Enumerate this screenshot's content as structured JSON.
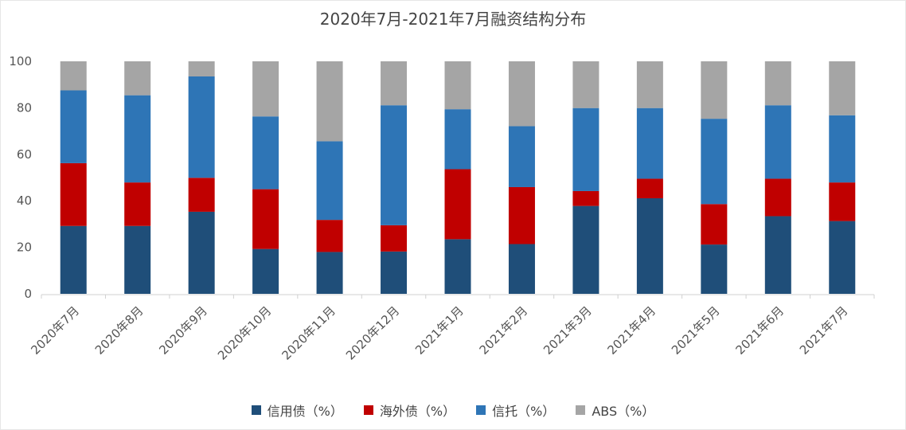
{
  "chart_data": {
    "type": "bar",
    "stacked": true,
    "title": "2020年7月-2021年7月融资结构分布",
    "xlabel": "",
    "ylabel": "",
    "ylim": [
      0,
      100
    ],
    "yticks": [
      0,
      20,
      40,
      60,
      80,
      100
    ],
    "grid": false,
    "legend_position": "bottom",
    "categories": [
      "2020年7月",
      "2020年8月",
      "2020年9月",
      "2020年10月",
      "2020年11月",
      "2020年12月",
      "2021年1月",
      "2021年2月",
      "2021年3月",
      "2021年4月",
      "2021年5月",
      "2021年6月",
      "2021年7月"
    ],
    "series": [
      {
        "name": "信用债（%）",
        "color": "#1f4e79",
        "values": [
          29.2,
          29.2,
          35.3,
          19.3,
          18.0,
          18.2,
          23.5,
          21.4,
          37.8,
          41.1,
          21.2,
          33.4,
          31.3
        ]
      },
      {
        "name": "海外债（%）",
        "color": "#c00000",
        "values": [
          27.0,
          18.7,
          14.6,
          25.7,
          13.8,
          11.3,
          30.1,
          24.5,
          6.4,
          8.4,
          17.4,
          16.1,
          16.6
        ]
      },
      {
        "name": "信托（%）",
        "color": "#2e75b6",
        "values": [
          31.3,
          37.5,
          43.6,
          31.3,
          33.8,
          51.6,
          25.8,
          26.2,
          35.7,
          30.4,
          36.7,
          31.6,
          28.9
        ]
      },
      {
        "name": "ABS（%）",
        "color": "#a5a5a5",
        "values": [
          12.5,
          14.6,
          6.5,
          23.7,
          34.4,
          18.9,
          20.6,
          27.9,
          20.1,
          20.1,
          24.7,
          18.9,
          23.2
        ]
      }
    ]
  }
}
